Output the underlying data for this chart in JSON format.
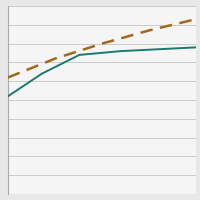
{
  "background_color": "#e8e8e8",
  "plot_bg_color": "#f5f5f5",
  "grid_color": "#cccccc",
  "xlim": [
    0,
    1
  ],
  "ylim": [
    0,
    1
  ],
  "line1": {
    "x": [
      0.0,
      0.18,
      0.38,
      0.6,
      0.8,
      1.0
    ],
    "y": [
      0.52,
      0.64,
      0.74,
      0.76,
      0.77,
      0.78
    ],
    "color": "#1a7a6e",
    "linestyle": "-",
    "linewidth": 1.4
  },
  "line2": {
    "x": [
      0.0,
      0.25,
      0.5,
      0.75,
      1.0
    ],
    "y": [
      0.62,
      0.72,
      0.8,
      0.87,
      0.93
    ],
    "color": "#a06818",
    "linestyle": "--",
    "linewidth": 1.8,
    "dashes": [
      5,
      3
    ]
  },
  "yticks": [
    0.0,
    0.1,
    0.2,
    0.3,
    0.4,
    0.5,
    0.6,
    0.7,
    0.8,
    0.9,
    1.0
  ],
  "figsize": [
    2.0,
    2.0
  ],
  "dpi": 100
}
